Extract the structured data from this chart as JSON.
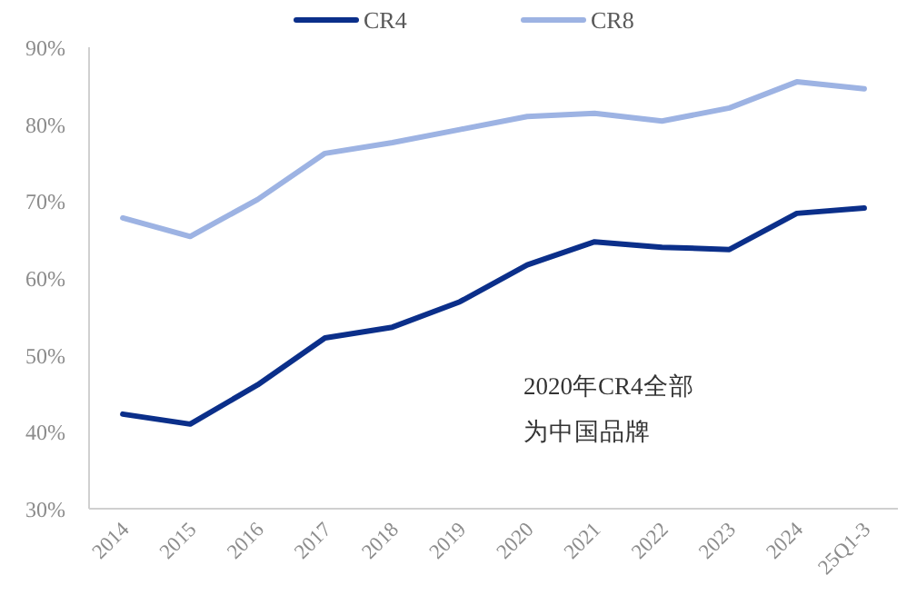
{
  "chart_data": {
    "type": "line",
    "categories": [
      "2014",
      "2015",
      "2016",
      "2017",
      "2018",
      "2019",
      "2020",
      "2021",
      "2022",
      "2023",
      "2024",
      "25Q1-3"
    ],
    "series": [
      {
        "name": "CR4",
        "color": "#0b2f8a",
        "values": [
          42.3,
          41.0,
          46.1,
          52.2,
          53.6,
          56.9,
          61.7,
          64.7,
          64.0,
          63.7,
          68.4,
          69.1
        ]
      },
      {
        "name": "CR8",
        "color": "#9db3e3",
        "values": [
          67.8,
          65.4,
          70.2,
          76.2,
          77.6,
          79.3,
          81.0,
          81.4,
          80.4,
          82.1,
          85.5,
          84.6
        ]
      }
    ],
    "ylim": [
      30,
      90
    ],
    "yticks": [
      {
        "value": 30,
        "label": "30%"
      },
      {
        "value": 40,
        "label": "40%"
      },
      {
        "value": 50,
        "label": "50%"
      },
      {
        "value": 60,
        "label": "60%"
      },
      {
        "value": 70,
        "label": "70%"
      },
      {
        "value": 80,
        "label": "80%"
      },
      {
        "value": 90,
        "label": "90%"
      }
    ],
    "annotations": [
      "2020年CR4全部",
      "为中国品牌"
    ],
    "legend": "top",
    "grid": false,
    "marker": "none",
    "line_style": "solid"
  }
}
